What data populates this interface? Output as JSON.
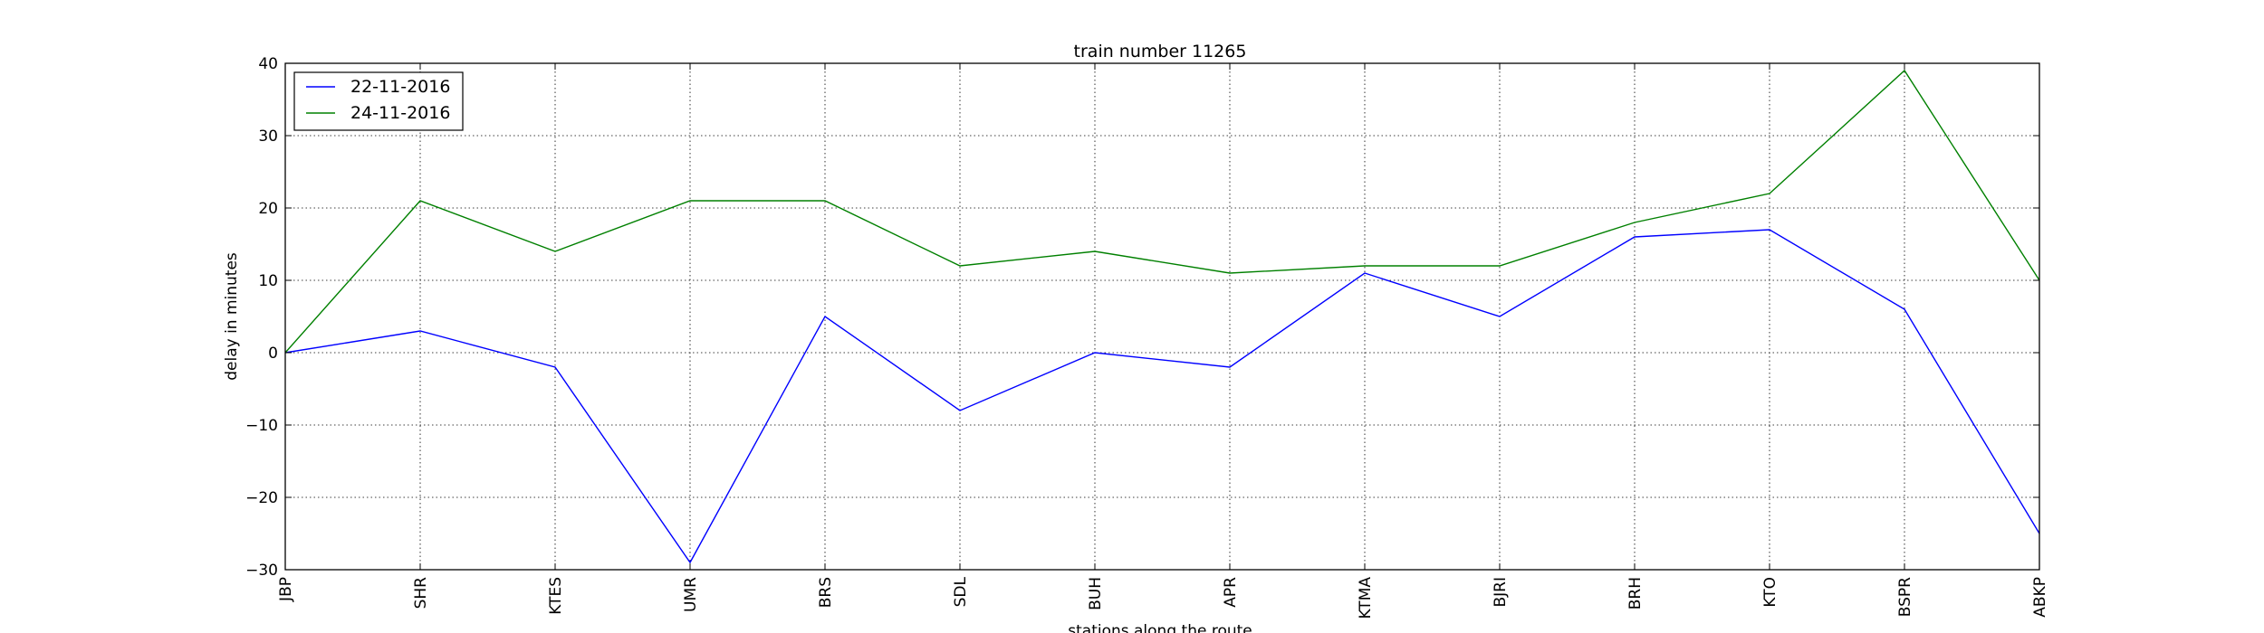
{
  "chart_data": {
    "type": "line",
    "title": "train number 11265",
    "xlabel": "stations along the route",
    "ylabel": "delay in minutes",
    "categories": [
      "JBP",
      "SHR",
      "KTES",
      "UMR",
      "BRS",
      "SDL",
      "BUH",
      "APR",
      "KTMA",
      "BJRI",
      "BRH",
      "KTO",
      "BSPR",
      "ABKP"
    ],
    "ylim": [
      -30,
      40
    ],
    "yticks": [
      -30,
      -20,
      -10,
      0,
      10,
      20,
      30,
      40
    ],
    "ytick_labels": [
      "−30",
      "−20",
      "−10",
      "0",
      "10",
      "20",
      "30",
      "40"
    ],
    "grid": true,
    "legend_position": "top-left",
    "series": [
      {
        "name": "22-11-2016",
        "color": "#0000ff",
        "values": [
          0,
          3,
          -2,
          -29,
          5,
          -8,
          0,
          -2,
          11,
          5,
          16,
          17,
          6,
          -25
        ]
      },
      {
        "name": "24-11-2016",
        "color": "#008000",
        "values": [
          0,
          21,
          14,
          21,
          21,
          12,
          14,
          11,
          12,
          12,
          18,
          22,
          39,
          10
        ]
      }
    ]
  }
}
